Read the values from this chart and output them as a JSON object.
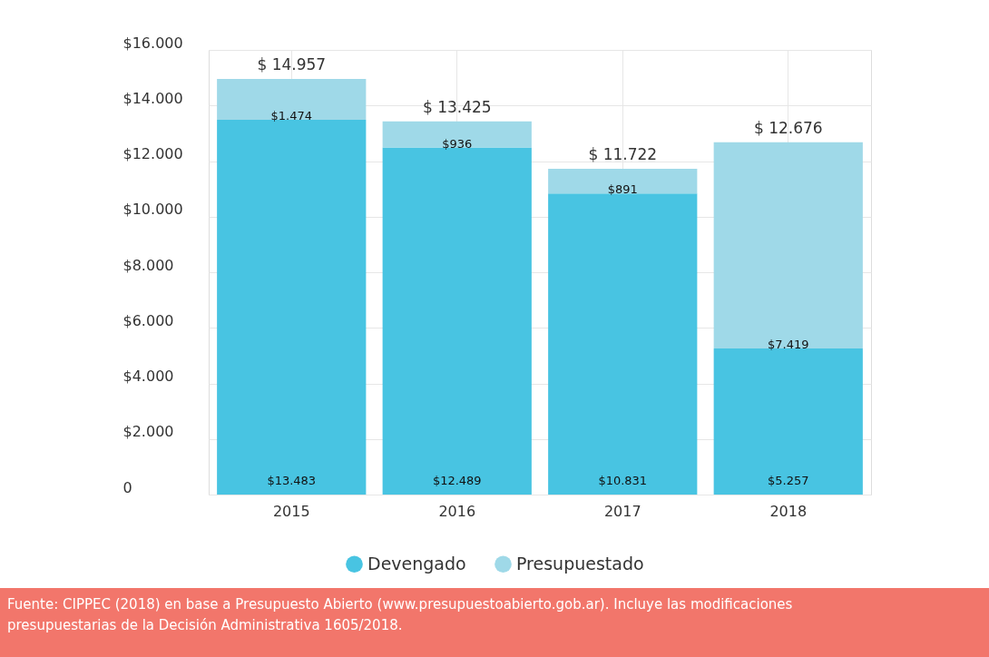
{
  "chart_data": {
    "type": "bar",
    "stacked": true,
    "categories": [
      "2015",
      "2016",
      "2017",
      "2018"
    ],
    "series": [
      {
        "name": "Devengado",
        "color": "#48c4e2",
        "values": [
          13483,
          12489,
          10831,
          5257
        ],
        "value_labels": [
          "$13.483",
          "$12.489",
          "$10.831",
          "$5.257"
        ]
      },
      {
        "name": "Presupuestado",
        "color": "#9fd9e8",
        "values": [
          1474,
          936,
          891,
          7419
        ],
        "value_labels": [
          "$1.474",
          "$936",
          "$891",
          "$7.419"
        ]
      }
    ],
    "totals": [
      "$ 14.957",
      "$ 13.425",
      "$ 11.722",
      "$ 12.676"
    ],
    "ylim": [
      0,
      16000
    ],
    "yticks": [
      0,
      {
        "value": 2000,
        "label": "$2.000"
      },
      {
        "value": 4000,
        "label": "$4.000"
      },
      {
        "value": 6000,
        "label": "$6.000"
      },
      {
        "value": 8000,
        "label": "$8.000"
      },
      {
        "value": 10000,
        "label": "$10.000"
      },
      {
        "value": 12000,
        "label": "$12.000"
      },
      {
        "value": 14000,
        "label": "$14.000"
      },
      {
        "value": 16000,
        "label": "$16.000"
      }
    ],
    "grid": true,
    "legend": "bottom",
    "annotations": [
      "Fuente: CIPPEC (2018) en base a Presupuesto Abierto (www.presupuestoabierto.gob.ar). Incluye las modificaciones presupuestarias de la Decisión Administrativa 1605/2018."
    ]
  }
}
